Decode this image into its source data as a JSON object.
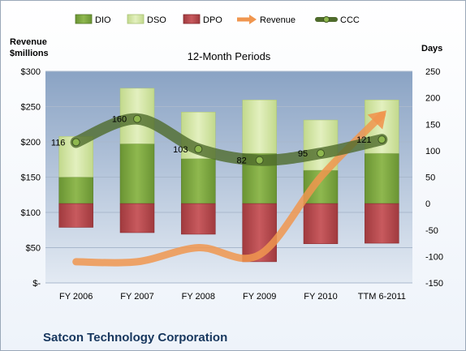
{
  "chart_data": {
    "type": "bar",
    "title": "12-Month Periods",
    "footer": "Satcon Technology Corporation",
    "left_axis_label": [
      "Revenue",
      "$millions"
    ],
    "right_axis_label": "Days",
    "categories": [
      "FY 2006",
      "FY 2007",
      "FY 2008",
      "FY 2009",
      "FY 2010",
      "TTM 6-2011"
    ],
    "left_ticks": [
      "$-",
      "$50",
      "$100",
      "$150",
      "$200",
      "$250",
      "$300"
    ],
    "right_ticks": [
      "-150",
      "-100",
      "-50",
      "0",
      "50",
      "100",
      "150",
      "200",
      "250"
    ],
    "ylim_left": [
      0,
      300
    ],
    "ylim_right": [
      -150,
      250
    ],
    "grid": true,
    "legend_position": "top",
    "series": [
      {
        "name": "DIO",
        "axis": "right",
        "stack": "positive",
        "values": [
          50,
          113,
          85,
          95,
          63,
          95
        ],
        "color": "#7fa83f"
      },
      {
        "name": "DSO",
        "axis": "right",
        "stack": "positive",
        "values": [
          77,
          105,
          88,
          101,
          95,
          101
        ],
        "color": "#d6e8a8"
      },
      {
        "name": "DPO",
        "axis": "right",
        "stack": "negative",
        "values": [
          -45,
          -55,
          -58,
          -110,
          -76,
          -75
        ],
        "color": "#b8474b"
      },
      {
        "name": "Revenue",
        "axis": "left",
        "type": "line",
        "values": [
          30,
          30,
          50,
          40,
          150,
          238
        ],
        "color": "#f0964f"
      },
      {
        "name": "CCC",
        "axis": "right",
        "type": "line",
        "values": [
          116,
          160,
          103,
          82,
          95,
          121
        ],
        "color": "#5f7a3c"
      }
    ],
    "data_labels": [
      "116",
      "160",
      "103",
      "82",
      "95",
      "121"
    ],
    "colors": {
      "plot_bg_top": "#8aa3c4",
      "plot_bg_bottom": "#e3eaf3",
      "ccc_line": "#4f6b2c",
      "revenue_line": "#f0964f"
    }
  }
}
